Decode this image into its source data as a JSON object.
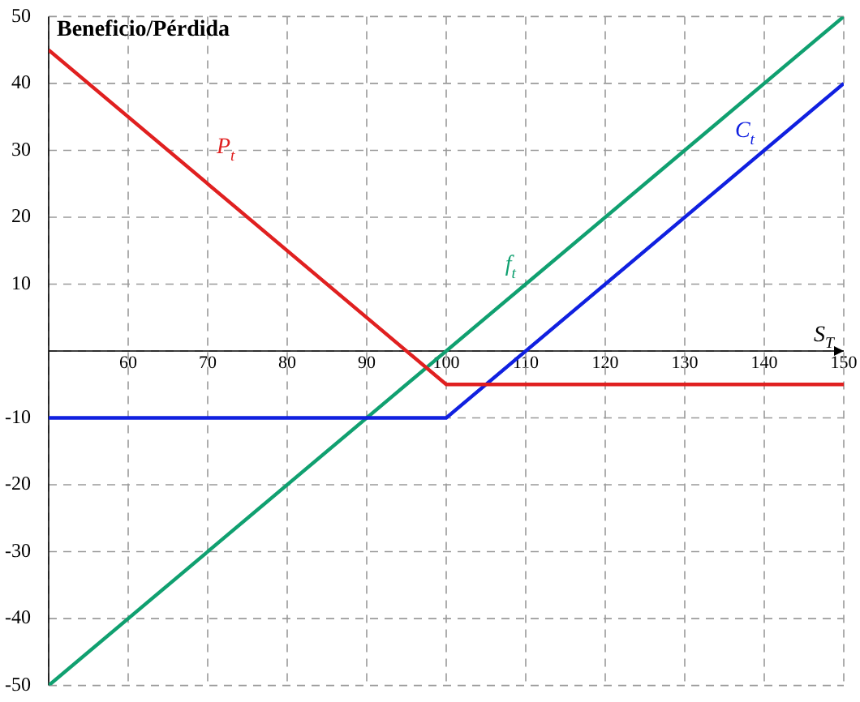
{
  "chart_data": {
    "type": "line",
    "ylabel": "Beneficio/Pérdida",
    "xlabel": "S$_{T}$",
    "xlim": [
      50,
      150
    ],
    "xticks": [
      {
        "value": 50,
        "label": null
      },
      60,
      70,
      80,
      90,
      100,
      110,
      120,
      130,
      140,
      150
    ],
    "ylim": [
      -50,
      50
    ],
    "yticks": [
      -50,
      -40,
      -30,
      -20,
      -10,
      {
        "value": 0,
        "label": null
      },
      10,
      20,
      30,
      40,
      50
    ],
    "grid": true,
    "legend": false,
    "marker": "none",
    "line_style": "solid",
    "series": [
      {
        "name": "P$_{t}$",
        "color": "#e02020",
        "x": [
          50,
          100,
          150
        ],
        "values": [
          45,
          -5,
          -5
        ]
      },
      {
        "name": "C$_{t}$",
        "color": "#1020e0",
        "x": [
          50,
          100,
          150
        ],
        "values": [
          -10,
          -10,
          40
        ]
      },
      {
        "name": "f$_{t}$",
        "color": "#10a070",
        "x": [
          50,
          150
        ],
        "values": [
          -50,
          50
        ]
      }
    ]
  }
}
